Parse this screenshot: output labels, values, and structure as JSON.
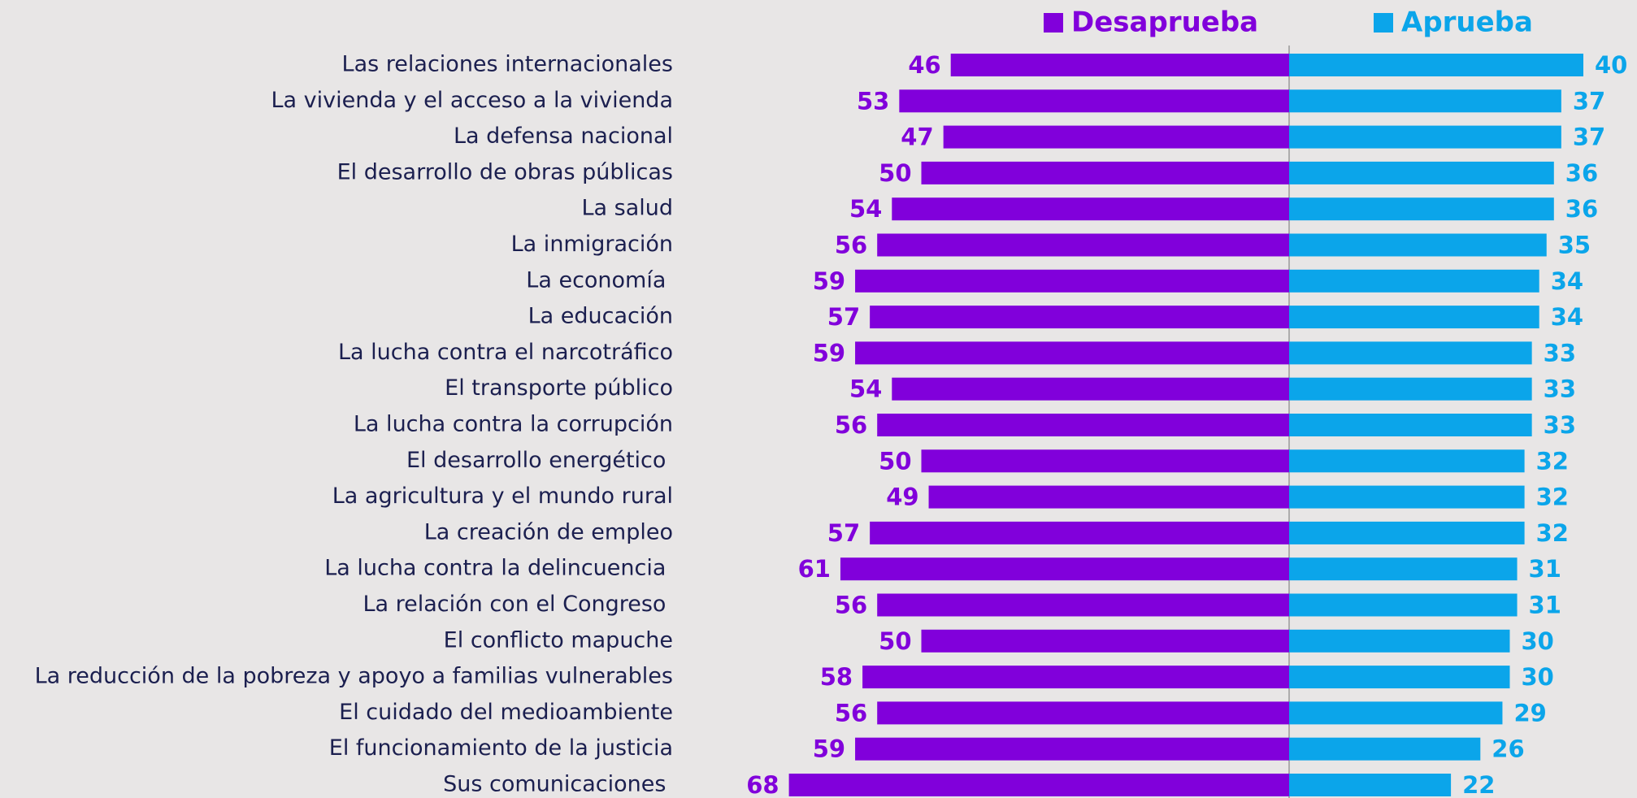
{
  "chart_data": {
    "type": "diverging-bar",
    "categories": [
      "Las relaciones internacionales",
      "La vivienda y el acceso a la vivienda",
      "La defensa nacional",
      "El desarrollo de obras públicas",
      "La salud",
      "La inmigración",
      "La economía ",
      "La educación",
      "La lucha contra el narcotráfico",
      "El transporte público",
      "La lucha contra la corrupción",
      "El desarrollo energético ",
      "La agricultura y el mundo rural",
      "La creación de empleo",
      "La lucha contra la delincuencia ",
      "La relación con el Congreso ",
      "El conflicto mapuche",
      "La reducción de la pobreza y apoyo a familias vulnerables",
      "El cuidado del medioambiente",
      "El funcionamiento de la justicia",
      "Sus comunicaciones "
    ],
    "series": [
      {
        "name": "Desaprueba",
        "color": "#8100db",
        "values": [
          46,
          53,
          47,
          50,
          54,
          56,
          59,
          57,
          59,
          54,
          56,
          50,
          49,
          57,
          61,
          56,
          50,
          58,
          56,
          59,
          68
        ]
      },
      {
        "name": "Aprueba",
        "color": "#0ba5ea",
        "values": [
          40,
          37,
          37,
          36,
          36,
          35,
          34,
          34,
          33,
          33,
          33,
          32,
          32,
          32,
          31,
          31,
          30,
          30,
          29,
          26,
          22
        ]
      }
    ]
  }
}
